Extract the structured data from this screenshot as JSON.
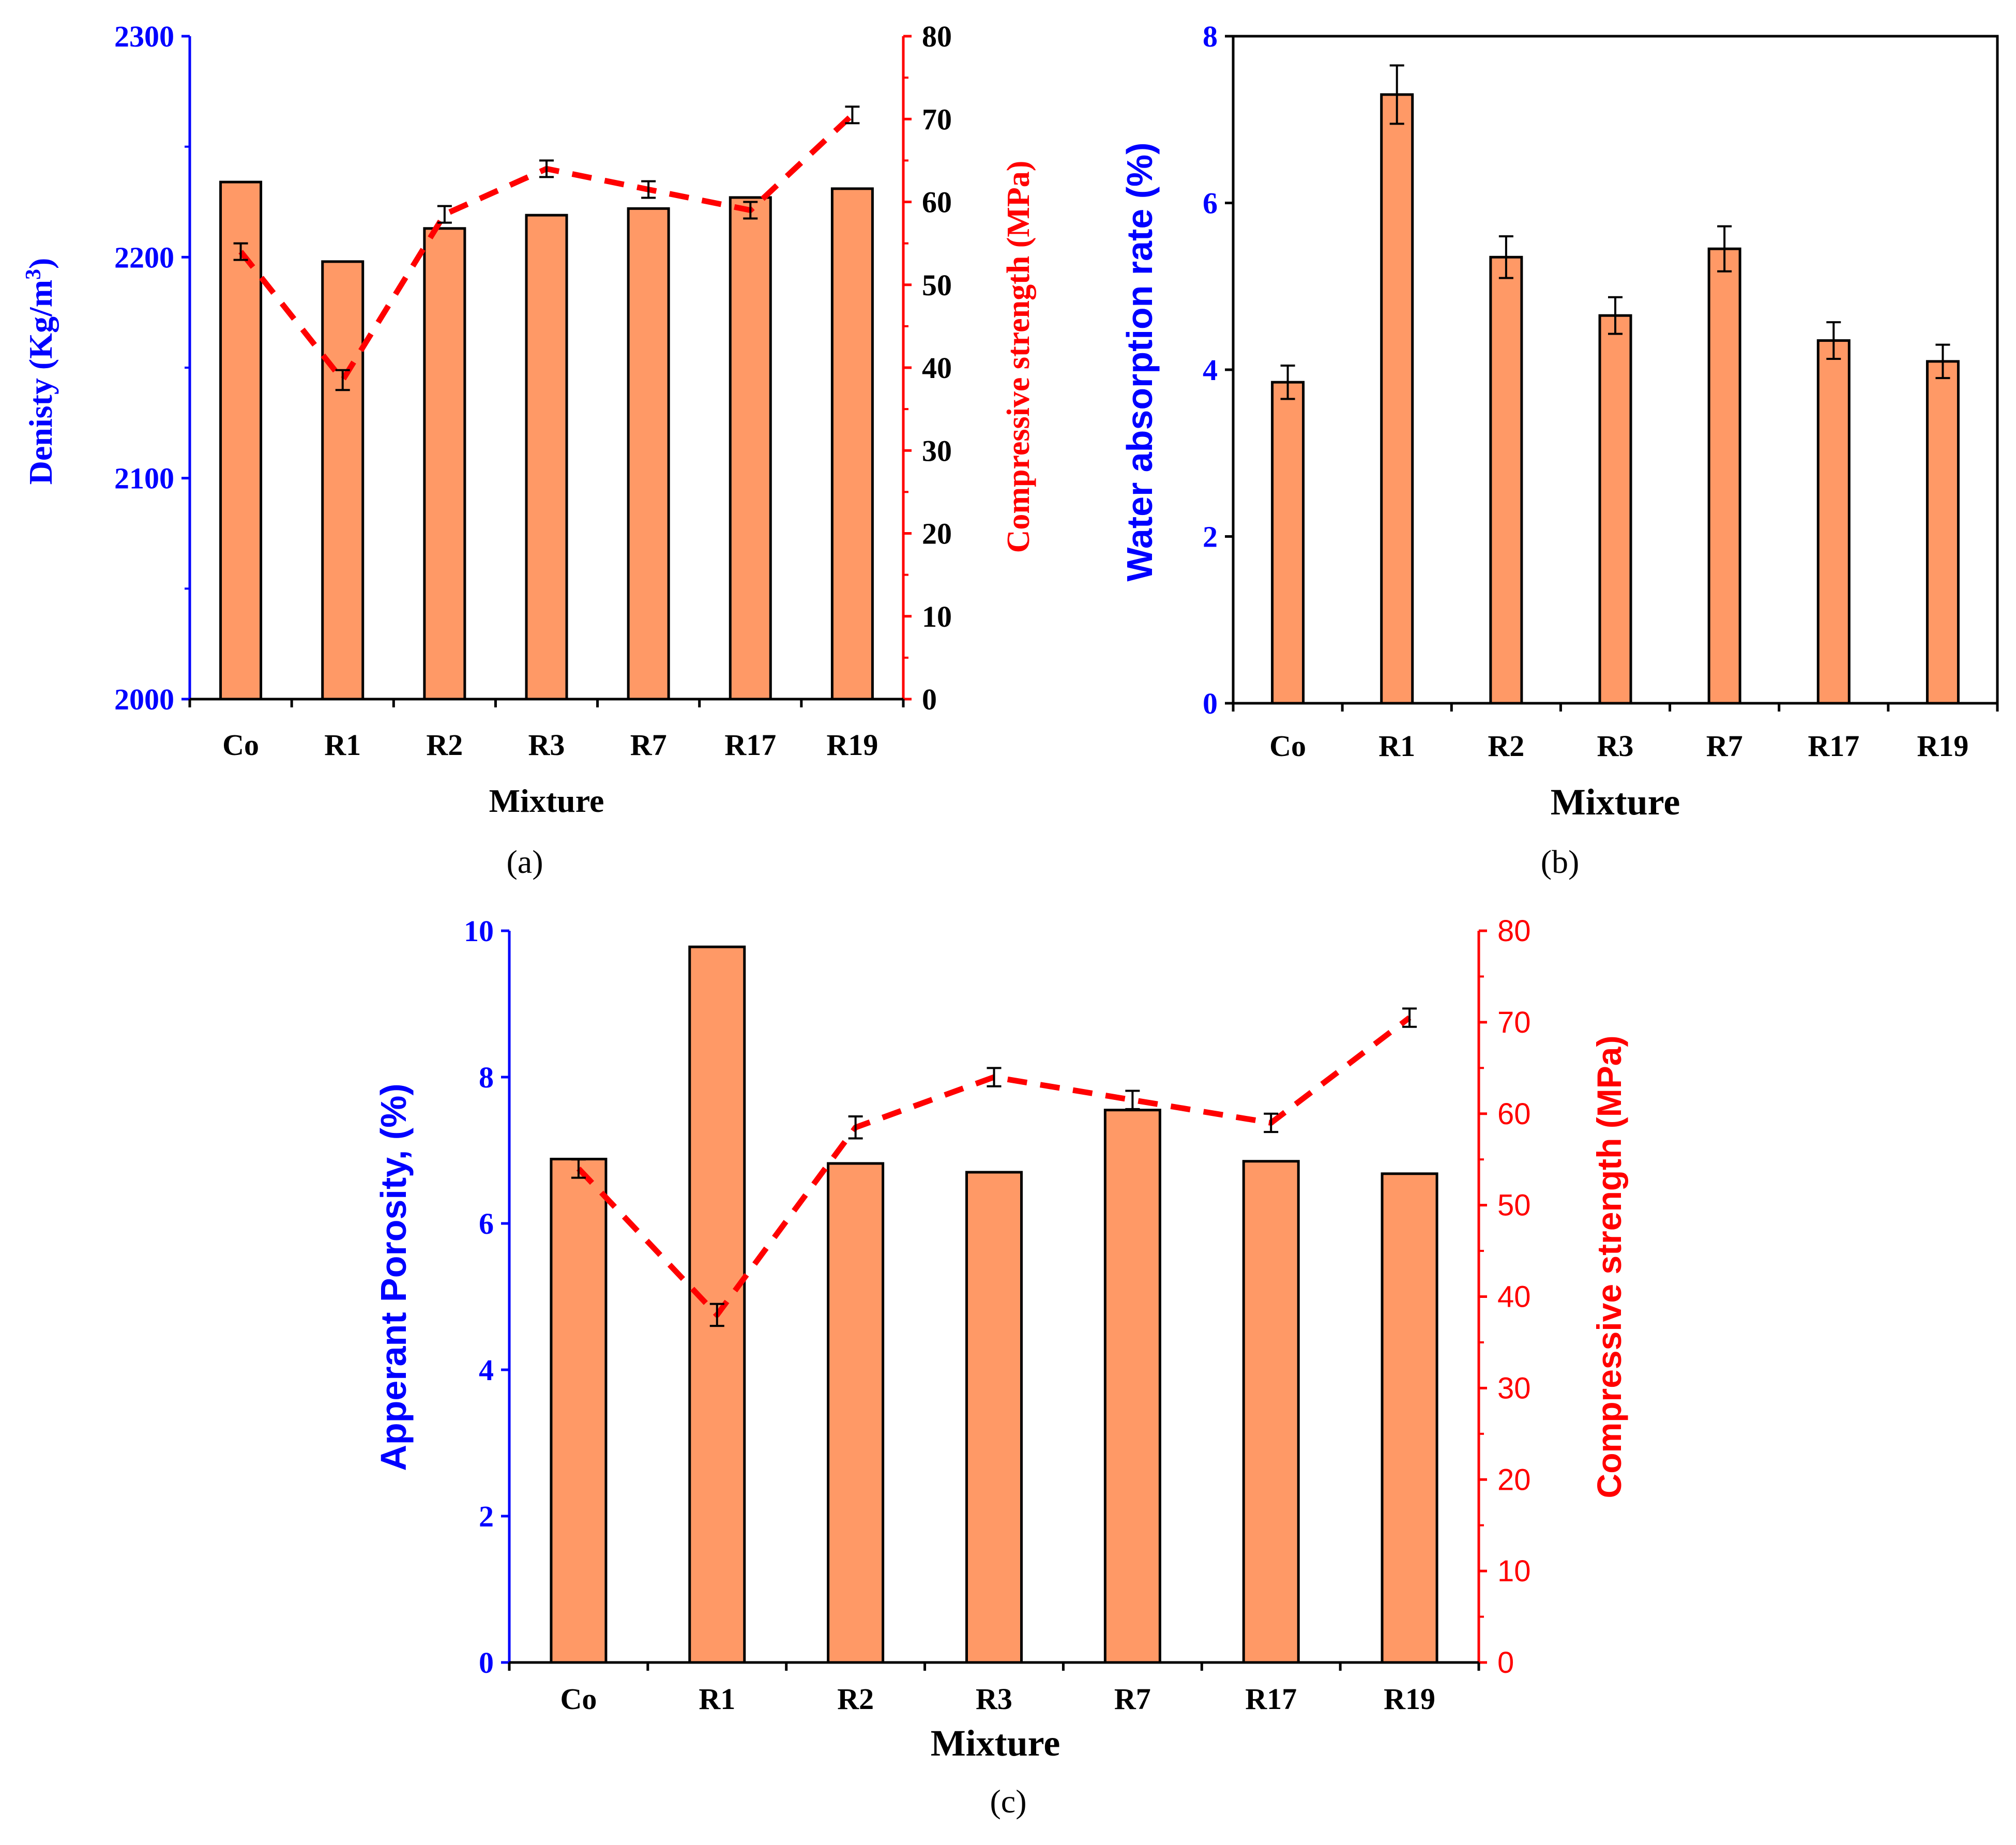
{
  "colors": {
    "bar_fill": "#FF9966",
    "left_axis": "#0000FF",
    "right_axis": "#FF0000",
    "dash_line": "#FF0000",
    "text": "#000000"
  },
  "chart_data": [
    {
      "id": "a",
      "type": "bar",
      "panel_label": "(a)",
      "categories": [
        "Co",
        "R1",
        "R2",
        "R3",
        "R7",
        "R17",
        "R19"
      ],
      "xlabel": "Mixture",
      "ylabel": "Denisty  (Kg/m³)",
      "ylabel_main": "Denisty  (Kg/m",
      "ylabel_sup": "3",
      "ylabel_close": ")",
      "ylim": [
        2000,
        2300
      ],
      "yticks": [
        2000,
        2100,
        2200,
        2300
      ],
      "bars": [
        2234,
        2198,
        2213,
        2219,
        2222,
        2227,
        2231
      ],
      "y2label": "Compressive strength (MPa)",
      "y2lim": [
        0,
        80
      ],
      "y2ticks": [
        0,
        10,
        20,
        30,
        40,
        50,
        60,
        70,
        80
      ],
      "line": [
        54,
        38.5,
        58.5,
        64,
        61.5,
        59,
        70.5
      ],
      "line_err": [
        1,
        1.2,
        1,
        1,
        1,
        1,
        1
      ]
    },
    {
      "id": "b",
      "type": "bar",
      "panel_label": "(b)",
      "categories": [
        "Co",
        "R1",
        "R2",
        "R3",
        "R7",
        "R17",
        "R19"
      ],
      "xlabel": "Mixture",
      "ylabel": "Water absorption rate (%)",
      "ylim": [
        0,
        8
      ],
      "yticks": [
        0,
        2,
        4,
        6,
        8
      ],
      "bars": [
        3.85,
        7.3,
        5.35,
        4.65,
        5.45,
        4.35,
        4.1
      ],
      "bar_err": [
        0.2,
        0.35,
        0.25,
        0.22,
        0.27,
        0.22,
        0.2
      ]
    },
    {
      "id": "c",
      "type": "bar",
      "panel_label": "(c)",
      "categories": [
        "Co",
        "R1",
        "R2",
        "R3",
        "R7",
        "R17",
        "R19"
      ],
      "xlabel": "Mixture",
      "ylabel": "Apperant Porosity,  (%)",
      "ylim": [
        0,
        10
      ],
      "yticks": [
        0,
        2,
        4,
        6,
        8,
        10
      ],
      "bars": [
        6.88,
        9.78,
        6.82,
        6.7,
        7.55,
        6.85,
        6.68
      ],
      "y2label": "Compressive strength (MPa)",
      "y2lim": [
        0,
        80
      ],
      "y2ticks": [
        0,
        10,
        20,
        30,
        40,
        50,
        60,
        70,
        80
      ],
      "line": [
        54,
        38,
        58.5,
        64,
        61.5,
        59,
        70.5
      ],
      "line_err": [
        1,
        1.2,
        1.2,
        1,
        1,
        1,
        1
      ]
    }
  ]
}
